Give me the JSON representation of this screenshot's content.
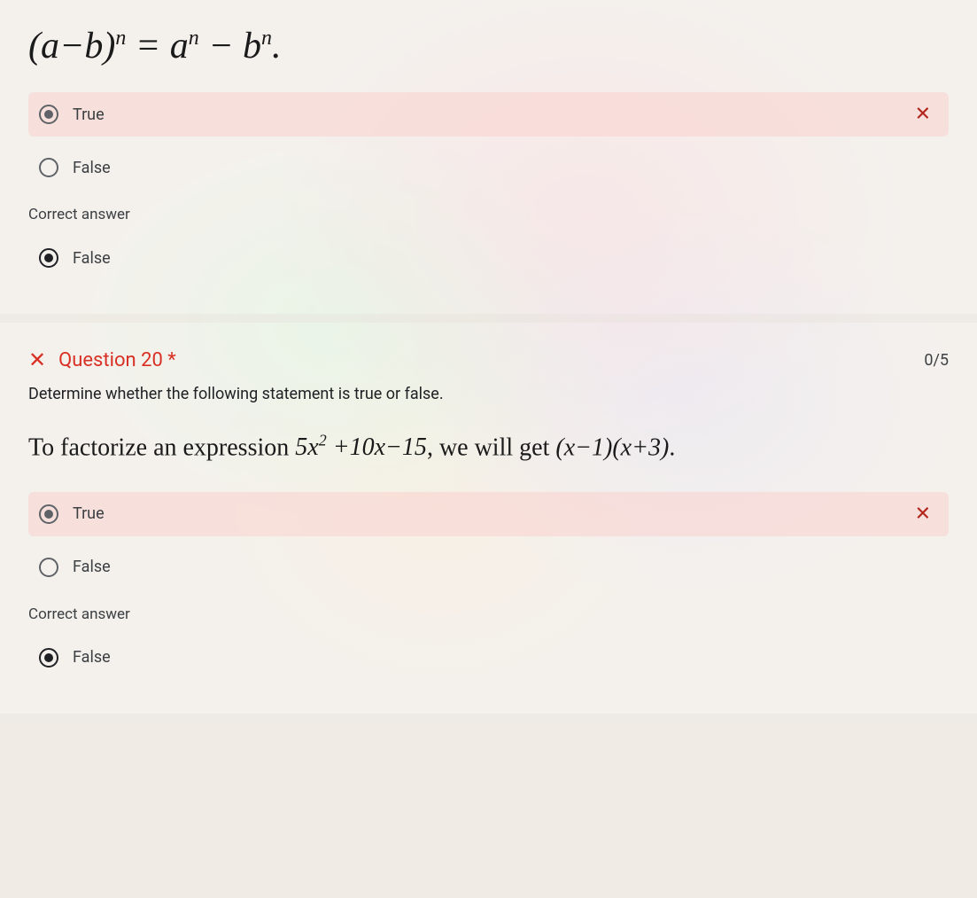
{
  "q19": {
    "equation_html": "(<i>a</i> − <i>b</i>)<sup><i>n</i></sup> = <i>a<sup>n</sup></i> − <i>b<sup>n</sup></i>.",
    "options": {
      "true": "True",
      "false": "False"
    },
    "user_choice": "true",
    "wrong_mark": "✕",
    "correct_label": "Correct answer",
    "correct_choice_label": "False"
  },
  "q20": {
    "wrong_icon": "✕",
    "title": "Question 20 *",
    "score": "0/5",
    "instruction": "Determine whether the following statement is true or false.",
    "statement_prefix": "To factorize an expression ",
    "expression": "5x² + 10x − 15",
    "statement_mid": ", we will get ",
    "factored": "(x − 1)(x + 3)",
    "statement_suffix": ".",
    "options": {
      "true": "True",
      "false": "False"
    },
    "user_choice": "true",
    "wrong_mark": "✕",
    "correct_label": "Correct answer",
    "correct_choice_label": "False"
  }
}
